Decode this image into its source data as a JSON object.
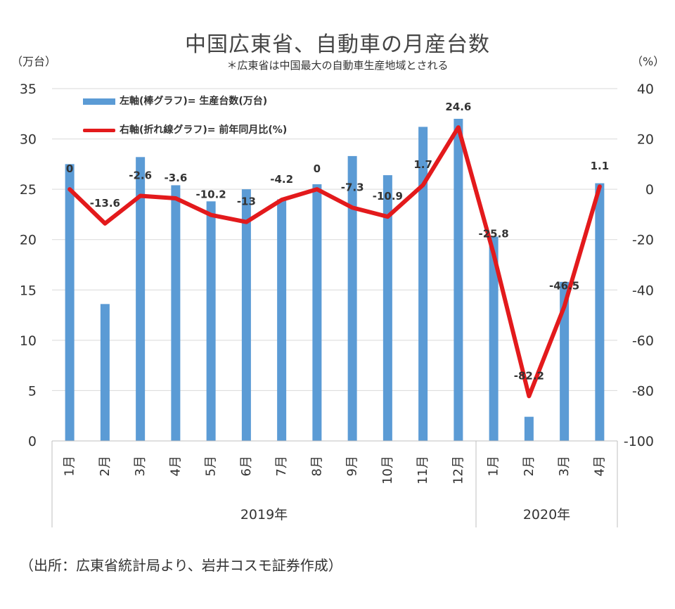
{
  "header": {
    "title": "中国広東省、自動車の月産台数",
    "subtitle": "＊広東省は中国最大の自動車生産地域とされる",
    "unit_left": "（万台）",
    "unit_right": "（%）"
  },
  "legend": {
    "bar_label": "左軸(棒グラフ)= 生産台数(万台)",
    "line_label": "右軸(折れ線グラフ)= 前年同月比(%)"
  },
  "source": "（出所：広東省統計局より、岩井コスモ証券作成）",
  "colors": {
    "bar": "#5b9bd5",
    "line": "#e31a1c",
    "grid": "#d9d9d9"
  },
  "chart_data": {
    "type": "bar",
    "categories": [
      "1月",
      "2月",
      "3月",
      "4月",
      "5月",
      "6月",
      "7月",
      "8月",
      "9月",
      "10月",
      "11月",
      "12月",
      "1月",
      "2月",
      "3月",
      "4月"
    ],
    "groups": [
      {
        "label": "2019年",
        "count": 12
      },
      {
        "label": "2020年",
        "count": 4
      }
    ],
    "series": [
      {
        "name": "左軸(棒グラフ)= 生産台数(万台)",
        "type": "bar",
        "axis": "left",
        "values": [
          27.5,
          13.6,
          28.2,
          25.4,
          23.8,
          25.0,
          24.0,
          25.5,
          28.3,
          26.4,
          31.2,
          32.0,
          20.3,
          2.4,
          15.8,
          25.6
        ]
      },
      {
        "name": "右軸(折れ線グラフ)= 前年同月比(%)",
        "type": "line",
        "axis": "right",
        "values": [
          0,
          -13.6,
          -2.6,
          -3.6,
          -10.2,
          -13,
          -4.2,
          0,
          -7.3,
          -10.9,
          1.7,
          24.6,
          -25.8,
          -82.2,
          -46.5,
          1.1
        ],
        "labels": [
          "0",
          "-13.6",
          "-2.6",
          "-3.6",
          "-10.2",
          "-13",
          "-4.2",
          "0",
          "-7.3",
          "-10.9",
          "1.7",
          "24.6",
          "-25.8",
          "-82.2",
          "-46.5",
          "1.1"
        ]
      }
    ],
    "y_left": {
      "range": [
        0,
        35
      ],
      "ticks": [
        "0",
        "5",
        "10",
        "15",
        "20",
        "25",
        "30",
        "35"
      ],
      "values": [
        0,
        5,
        10,
        15,
        20,
        25,
        30,
        35
      ]
    },
    "y_right": {
      "range": [
        -100,
        40
      ],
      "ticks": [
        "-100",
        "-80",
        "-60",
        "-40",
        "-20",
        "0",
        "20",
        "40"
      ],
      "values": [
        -100,
        -80,
        -60,
        -40,
        -20,
        0,
        20,
        40
      ]
    },
    "grid": true,
    "legend_position": "top-left"
  }
}
